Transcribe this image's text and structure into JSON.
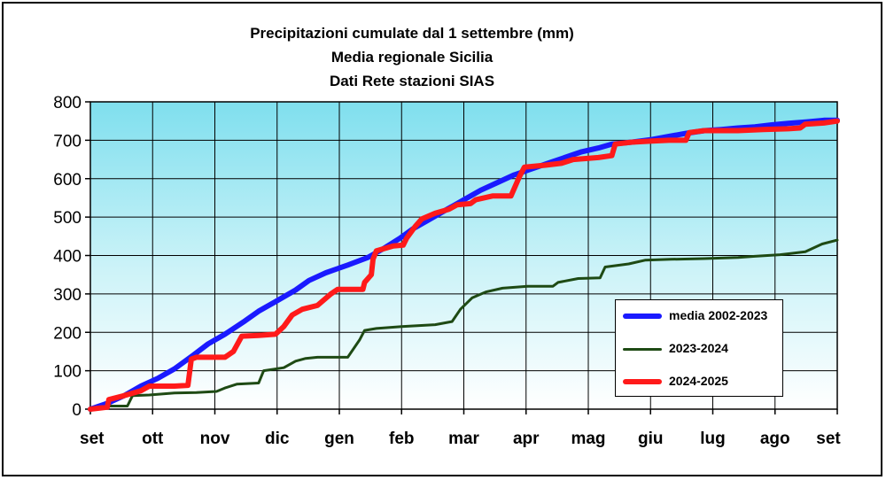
{
  "chart_data": {
    "type": "line",
    "title": "Precipitazioni cumulate dal 1 settembre (mm)",
    "subtitle": "Media regionale Sicilia",
    "subtitle2": "Dati Rete stazioni SIAS",
    "xlabel": "",
    "ylabel": "",
    "ylim": [
      0,
      800
    ],
    "yticks": [
      "0",
      "100",
      "200",
      "300",
      "400",
      "500",
      "600",
      "700",
      "800"
    ],
    "x_ticks": [
      "set",
      "ott",
      "nov",
      "dic",
      "gen",
      "feb",
      "mar",
      "apr",
      "mag",
      "giu",
      "lug",
      "ago",
      "set"
    ],
    "x_range_days": [
      0,
      365
    ],
    "grid": true,
    "legend_position": "bottom-right",
    "series": [
      {
        "name": "media 2002-2023",
        "color": "#1a1aff",
        "points": [
          [
            0,
            0
          ],
          [
            10,
            15
          ],
          [
            20,
            35
          ],
          [
            30,
            60
          ],
          [
            40,
            80
          ],
          [
            50,
            105
          ],
          [
            61,
            140
          ],
          [
            70,
            170
          ],
          [
            80,
            195
          ],
          [
            92,
            230
          ],
          [
            100,
            255
          ],
          [
            110,
            280
          ],
          [
            122,
            310
          ],
          [
            130,
            335
          ],
          [
            140,
            355
          ],
          [
            153,
            375
          ],
          [
            165,
            395
          ],
          [
            175,
            420
          ],
          [
            184,
            445
          ],
          [
            192,
            470
          ],
          [
            200,
            490
          ],
          [
            212,
            520
          ],
          [
            222,
            545
          ],
          [
            232,
            570
          ],
          [
            242,
            590
          ],
          [
            252,
            610
          ],
          [
            262,
            625
          ],
          [
            272,
            640
          ],
          [
            282,
            655
          ],
          [
            292,
            670
          ],
          [
            302,
            680
          ],
          [
            310,
            690
          ],
          [
            322,
            695
          ],
          [
            334,
            702
          ],
          [
            344,
            710
          ],
          [
            354,
            718
          ],
          [
            365,
            725
          ],
          [
            375,
            728
          ],
          [
            385,
            732
          ],
          [
            395,
            735
          ],
          [
            405,
            740
          ],
          [
            415,
            744
          ],
          [
            426,
            748
          ],
          [
            436,
            752
          ],
          [
            444,
            752
          ]
        ]
      },
      {
        "name": "2023-2024",
        "color": "#1e4a14",
        "points": [
          [
            0,
            0
          ],
          [
            5,
            8
          ],
          [
            22,
            8
          ],
          [
            25,
            35
          ],
          [
            35,
            37
          ],
          [
            50,
            42
          ],
          [
            63,
            43
          ],
          [
            75,
            46
          ],
          [
            80,
            55
          ],
          [
            87,
            65
          ],
          [
            100,
            68
          ],
          [
            103,
            100
          ],
          [
            115,
            108
          ],
          [
            122,
            125
          ],
          [
            128,
            132
          ],
          [
            135,
            135
          ],
          [
            153,
            135
          ],
          [
            160,
            180
          ],
          [
            163,
            205
          ],
          [
            170,
            210
          ],
          [
            185,
            215
          ],
          [
            205,
            220
          ],
          [
            215,
            228
          ],
          [
            220,
            260
          ],
          [
            227,
            290
          ],
          [
            235,
            305
          ],
          [
            245,
            315
          ],
          [
            260,
            320
          ],
          [
            275,
            320
          ],
          [
            278,
            330
          ],
          [
            290,
            340
          ],
          [
            303,
            342
          ],
          [
            306,
            370
          ],
          [
            320,
            378
          ],
          [
            330,
            388
          ],
          [
            345,
            390
          ],
          [
            365,
            392
          ],
          [
            385,
            395
          ],
          [
            395,
            398
          ],
          [
            410,
            402
          ],
          [
            425,
            410
          ],
          [
            435,
            430
          ],
          [
            444,
            440
          ]
        ]
      },
      {
        "name": "2024-2025",
        "color": "#ff1a1a",
        "points": [
          [
            0,
            0
          ],
          [
            10,
            5
          ],
          [
            11,
            25
          ],
          [
            20,
            35
          ],
          [
            30,
            48
          ],
          [
            35,
            60
          ],
          [
            50,
            60
          ],
          [
            58,
            62
          ],
          [
            60,
            130
          ],
          [
            63,
            135
          ],
          [
            80,
            135
          ],
          [
            85,
            150
          ],
          [
            90,
            190
          ],
          [
            100,
            192
          ],
          [
            110,
            195
          ],
          [
            115,
            215
          ],
          [
            120,
            245
          ],
          [
            126,
            260
          ],
          [
            135,
            270
          ],
          [
            143,
            300
          ],
          [
            147,
            312
          ],
          [
            152,
            312
          ],
          [
            162,
            312
          ],
          [
            163,
            330
          ],
          [
            167,
            350
          ],
          [
            168,
            390
          ],
          [
            170,
            412
          ],
          [
            180,
            425
          ],
          [
            186,
            427
          ],
          [
            188,
            445
          ],
          [
            193,
            475
          ],
          [
            197,
            495
          ],
          [
            205,
            510
          ],
          [
            213,
            520
          ],
          [
            218,
            532
          ],
          [
            226,
            535
          ],
          [
            229,
            545
          ],
          [
            239,
            555
          ],
          [
            250,
            555
          ],
          [
            253,
            585
          ],
          [
            255,
            605
          ],
          [
            258,
            630
          ],
          [
            270,
            635
          ],
          [
            280,
            640
          ],
          [
            287,
            650
          ],
          [
            302,
            655
          ],
          [
            310,
            660
          ],
          [
            312,
            690
          ],
          [
            322,
            695
          ],
          [
            334,
            698
          ],
          [
            344,
            700
          ],
          [
            354,
            700
          ],
          [
            356,
            720
          ],
          [
            365,
            725
          ],
          [
            375,
            725
          ],
          [
            385,
            725
          ],
          [
            400,
            728
          ],
          [
            415,
            730
          ],
          [
            422,
            732
          ],
          [
            425,
            742
          ],
          [
            436,
            745
          ],
          [
            444,
            750
          ]
        ]
      }
    ]
  }
}
